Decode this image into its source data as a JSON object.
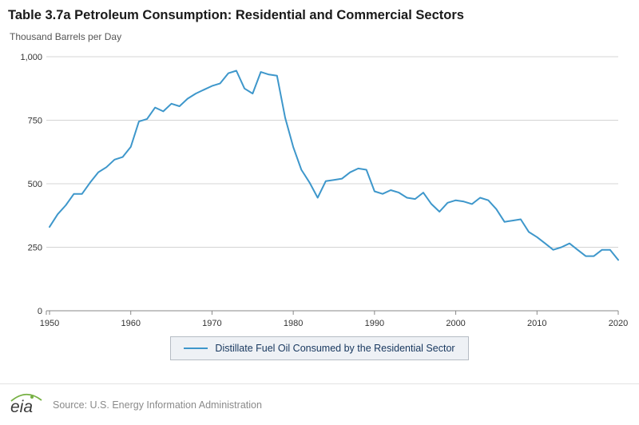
{
  "header": {
    "title": "Table 3.7a Petroleum Consumption: Residential and Commercial Sectors"
  },
  "footer": {
    "logo_text": "eia",
    "source": "Source: U.S. Energy Information Administration"
  },
  "colors": {
    "line": "#3e97cb",
    "grid": "#d4d4d4",
    "axis": "#888888",
    "logo_green": "#76b043"
  },
  "chart_data": {
    "type": "line",
    "title": "Table 3.7a Petroleum Consumption: Residential and Commercial Sectors",
    "ylabel": "Thousand Barrels per Day",
    "xlabel": "",
    "grid": true,
    "legend_position": "bottom",
    "x_start": 1950,
    "x_end": 2020,
    "x_step": 1,
    "x_ticks": [
      1950,
      1960,
      1970,
      1980,
      1990,
      2000,
      2010,
      2020
    ],
    "ylim": [
      0,
      1000
    ],
    "y_ticks": [
      0,
      250,
      500,
      750,
      1000
    ],
    "y_tick_labels": [
      "0",
      "250",
      "500",
      "750",
      "1,000"
    ],
    "series": [
      {
        "name": "Distillate Fuel Oil Consumed by the Residential Sector",
        "color": "#3e97cb",
        "values": [
          330,
          380,
          415,
          460,
          460,
          505,
          545,
          565,
          595,
          605,
          645,
          745,
          755,
          800,
          785,
          815,
          805,
          835,
          855,
          870,
          885,
          895,
          935,
          945,
          875,
          855,
          940,
          930,
          925,
          760,
          645,
          555,
          505,
          445,
          510,
          515,
          520,
          545,
          560,
          555,
          470,
          460,
          475,
          465,
          445,
          440,
          465,
          420,
          390,
          425,
          435,
          430,
          420,
          445,
          435,
          400,
          350,
          355,
          360,
          310,
          290,
          265,
          240,
          250,
          265,
          240,
          215,
          215,
          240,
          240,
          200
        ]
      }
    ]
  }
}
